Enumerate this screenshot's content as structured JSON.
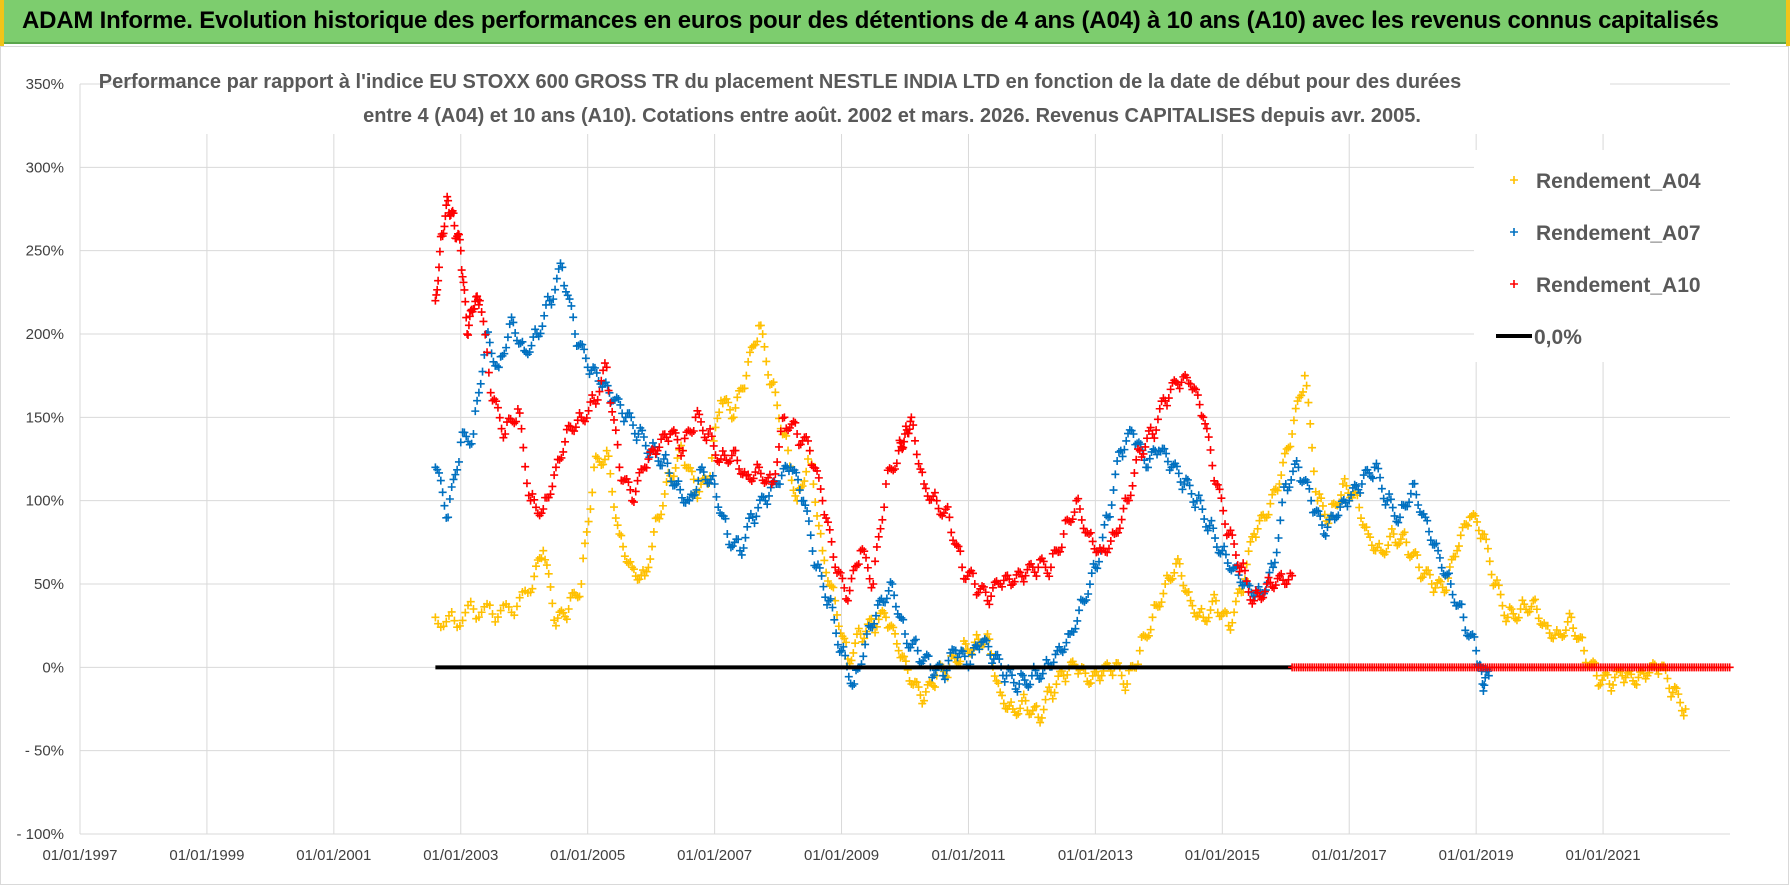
{
  "header": {
    "banner_title": "ADAM Informe. Evolution historique des performances en euros pour des détentions de 4 ans (A04) à 10 ans (A10) avec les revenus connus capitalisés"
  },
  "chart_data": {
    "type": "scatter",
    "title_line1": "Performance par rapport à l'indice EU STOXX 600 GROSS TR  du placement NESTLE INDIA LTD en fonction de la date de début pour des durées",
    "title_line2": "entre 4 (A04) et 10 ans (A10).  Cotations entre août. 2002 et mars. 2026.  Revenus CAPITALISES  depuis avr. 2005.",
    "xlim": [
      1997.0,
      2023.0
    ],
    "ylim": [
      -100,
      350
    ],
    "x_ticks": [
      1997,
      1999,
      2001,
      2003,
      2005,
      2007,
      2009,
      2011,
      2013,
      2015,
      2017,
      2019,
      2021
    ],
    "x_tick_labels": [
      "01/01/1997",
      "01/01/1999",
      "01/01/2001",
      "01/01/2003",
      "01/01/2005",
      "01/01/2007",
      "01/01/2009",
      "01/01/2011",
      "01/01/2013",
      "01/01/2015",
      "01/01/2017",
      "01/01/2019",
      "01/01/2021"
    ],
    "y_ticks": [
      -100,
      -50,
      0,
      50,
      100,
      150,
      200,
      250,
      300,
      350
    ],
    "y_tick_labels": [
      "- 100%",
      "- 50%",
      "0%",
      "50%",
      "100%",
      "150%",
      "200%",
      "250%",
      "300%",
      "350%"
    ],
    "legend": [
      {
        "name": "Rendement_A04",
        "color": "#ffc000",
        "marker": "+"
      },
      {
        "name": "Rendement_A07",
        "color": "#0070c0",
        "marker": "+"
      },
      {
        "name": "Rendement_A10",
        "color": "#ff0000",
        "marker": "+"
      },
      {
        "name": "0,0%",
        "color": "#000000",
        "marker": "line"
      }
    ],
    "series": [
      {
        "name": "Rendement_A04",
        "color": "#ffc000",
        "x": [
          2002.6,
          2002.9,
          2003.2,
          2003.5,
          2003.8,
          2004.1,
          2004.3,
          2004.5,
          2004.7,
          2004.9,
          2005.1,
          2005.3,
          2005.5,
          2005.7,
          2005.9,
          2006.1,
          2006.3,
          2006.5,
          2006.7,
          2006.9,
          2007.1,
          2007.3,
          2007.5,
          2007.7,
          2007.9,
          2008.1,
          2008.3,
          2008.5,
          2008.7,
          2008.9,
          2009.1,
          2009.3,
          2009.5,
          2009.7,
          2009.9,
          2010.1,
          2010.3,
          2010.5,
          2010.7,
          2010.9,
          2011.1,
          2011.3,
          2011.5,
          2011.7,
          2011.9,
          2012.1,
          2012.3,
          2012.5,
          2012.7,
          2012.9,
          2013.1,
          2013.3,
          2013.5,
          2013.7,
          2013.9,
          2014.1,
          2014.3,
          2014.5,
          2014.7,
          2014.9,
          2015.1,
          2015.3,
          2015.5,
          2015.7,
          2015.9,
          2016.1,
          2016.3,
          2016.5,
          2016.7,
          2016.9,
          2017.1,
          2017.3,
          2017.5,
          2017.7,
          2017.9,
          2018.1,
          2018.3,
          2018.5,
          2018.7,
          2018.9,
          2019.1,
          2019.3,
          2019.5,
          2019.7,
          2019.9,
          2020.1,
          2020.3,
          2020.5,
          2020.7,
          2020.9,
          2021.1,
          2021.3,
          2021.5,
          2021.7,
          2021.9,
          2022.1,
          2022.3
        ],
        "y": [
          30,
          28,
          35,
          32,
          33,
          45,
          70,
          25,
          35,
          50,
          120,
          130,
          80,
          60,
          55,
          90,
          115,
          130,
          105,
          110,
          160,
          150,
          175,
          205,
          170,
          140,
          100,
          130,
          70,
          40,
          5,
          20,
          25,
          30,
          10,
          -10,
          -20,
          -5,
          0,
          10,
          15,
          20,
          -15,
          -25,
          -20,
          -30,
          -15,
          -5,
          0,
          -10,
          -5,
          0,
          -10,
          10,
          30,
          50,
          65,
          40,
          30,
          40,
          25,
          45,
          80,
          90,
          110,
          140,
          175,
          100,
          90,
          110,
          105,
          80,
          70,
          80,
          75,
          60,
          50,
          45,
          70,
          90,
          80,
          50,
          30,
          35,
          40,
          25,
          20,
          30,
          10,
          -5,
          -10,
          -5,
          -10,
          -5,
          0,
          -15,
          -25
        ]
      },
      {
        "name": "Rendement_A07",
        "color": "#0070c0",
        "x": [
          2002.6,
          2002.8,
          2003.0,
          2003.2,
          2003.4,
          2003.6,
          2003.8,
          2004.0,
          2004.2,
          2004.4,
          2004.6,
          2004.8,
          2005.0,
          2005.2,
          2005.4,
          2005.6,
          2005.8,
          2006.0,
          2006.2,
          2006.4,
          2006.6,
          2006.8,
          2007.0,
          2007.2,
          2007.4,
          2007.6,
          2007.8,
          2008.0,
          2008.2,
          2008.4,
          2008.6,
          2008.8,
          2009.0,
          2009.2,
          2009.4,
          2009.6,
          2009.8,
          2010.0,
          2010.2,
          2010.4,
          2010.6,
          2010.8,
          2011.0,
          2011.2,
          2011.4,
          2011.6,
          2011.8,
          2012.0,
          2012.2,
          2012.4,
          2012.6,
          2012.8,
          2013.0,
          2013.2,
          2013.4,
          2013.6,
          2013.8,
          2014.0,
          2014.2,
          2014.4,
          2014.6,
          2014.8,
          2015.0,
          2015.2,
          2015.4,
          2015.6,
          2015.8,
          2016.0,
          2016.2,
          2016.4,
          2016.6,
          2016.8,
          2017.0,
          2017.2,
          2017.4,
          2017.6,
          2017.8,
          2018.0,
          2018.2,
          2018.4,
          2018.6,
          2018.8,
          2019.0,
          2019.1,
          2019.2
        ],
        "y": [
          120,
          90,
          135,
          140,
          200,
          180,
          210,
          190,
          200,
          220,
          240,
          200,
          180,
          170,
          160,
          150,
          140,
          130,
          125,
          110,
          100,
          120,
          110,
          80,
          70,
          90,
          100,
          110,
          120,
          100,
          60,
          40,
          10,
          -10,
          20,
          40,
          50,
          20,
          10,
          0,
          -5,
          10,
          0,
          15,
          5,
          -5,
          -10,
          -5,
          0,
          10,
          20,
          40,
          60,
          90,
          130,
          140,
          120,
          130,
          120,
          110,
          100,
          85,
          70,
          60,
          50,
          45,
          60,
          110,
          120,
          100,
          80,
          90,
          100,
          110,
          120,
          100,
          90,
          110,
          90,
          70,
          50,
          30,
          10,
          -10,
          -5
        ]
      },
      {
        "name": "Rendement_A10",
        "color": "#ff0000",
        "x": [
          2002.6,
          2002.7,
          2002.8,
          2002.9,
          2003.0,
          2003.1,
          2003.2,
          2003.3,
          2003.5,
          2003.7,
          2003.9,
          2004.1,
          2004.3,
          2004.5,
          2004.7,
          2004.9,
          2005.1,
          2005.3,
          2005.5,
          2005.7,
          2005.9,
          2006.1,
          2006.3,
          2006.5,
          2006.7,
          2006.9,
          2007.1,
          2007.3,
          2007.5,
          2007.7,
          2007.9,
          2008.1,
          2008.3,
          2008.5,
          2008.7,
          2008.9,
          2009.1,
          2009.3,
          2009.5,
          2009.7,
          2009.9,
          2010.0,
          2010.1,
          2010.3,
          2010.5,
          2010.7,
          2010.9,
          2011.1,
          2011.3,
          2011.5,
          2011.7,
          2011.9,
          2012.1,
          2012.3,
          2012.5,
          2012.7,
          2012.9,
          2013.1,
          2013.3,
          2013.5,
          2013.7,
          2013.9,
          2014.1,
          2014.3,
          2014.5,
          2014.7,
          2014.9,
          2015.1,
          2015.3,
          2015.5,
          2015.7,
          2015.9,
          2016.1
        ],
        "y": [
          220,
          260,
          280,
          265,
          250,
          200,
          215,
          220,
          160,
          140,
          155,
          100,
          95,
          120,
          145,
          150,
          160,
          180,
          120,
          100,
          120,
          130,
          140,
          130,
          150,
          140,
          125,
          130,
          115,
          120,
          110,
          150,
          140,
          130,
          100,
          60,
          40,
          70,
          50,
          110,
          130,
          140,
          150,
          110,
          100,
          90,
          60,
          50,
          40,
          50,
          50,
          55,
          60,
          60,
          80,
          100,
          80,
          70,
          80,
          100,
          130,
          140,
          160,
          170,
          170,
          150,
          110,
          80,
          60,
          40,
          50,
          55,
          55
        ]
      },
      {
        "name": "0,0%",
        "color": "#000000",
        "x": [
          2002.6,
          2016.1
        ],
        "y": [
          0,
          0
        ]
      },
      {
        "name": "Rendement_A10 (0%)",
        "color": "#ff0000",
        "x": [
          2016.1,
          2023.0
        ],
        "y": [
          0,
          0
        ]
      }
    ]
  }
}
